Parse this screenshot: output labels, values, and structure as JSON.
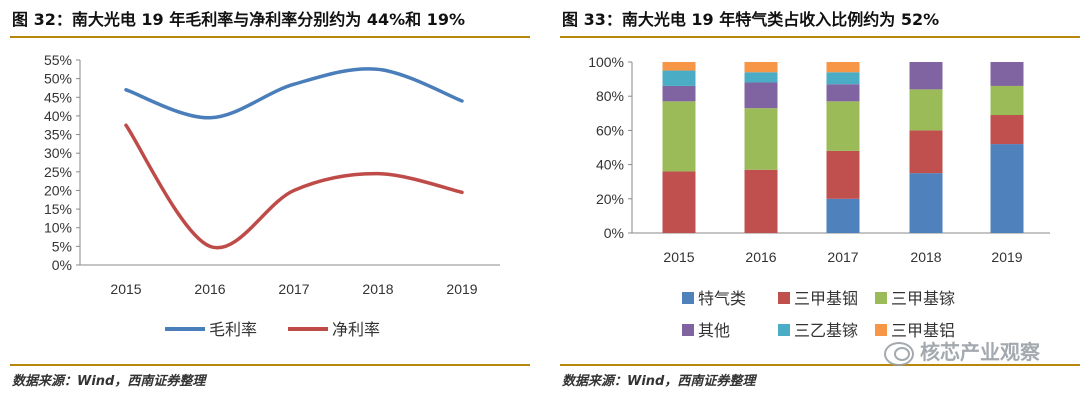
{
  "left": {
    "title": "图 32：南大光电 19 年毛利率与净利率分别约为 44%和 19%",
    "source": "数据来源：Wind，西南证券整理"
  },
  "right": {
    "title": "图 33：南大光电 19 年特气类占收入比例约为 52%",
    "source": "数据来源：Wind，西南证券整理"
  },
  "watermark": "核芯产业观察",
  "colors": {
    "rule": "#b8860b",
    "gross": "#4a7ebb",
    "net": "#be4b48",
    "teqi": "#4f81bd",
    "sanjiayin": "#c0504d",
    "sanjiajia": "#9bbb59",
    "qita": "#8064a2",
    "sanyijia": "#4bacc6",
    "sanjialv": "#f79646"
  },
  "chart_data": [
    {
      "type": "line",
      "x": [
        "2015",
        "2016",
        "2017",
        "2018",
        "2019"
      ],
      "series": [
        {
          "name": "毛利率",
          "values": [
            47,
            39.5,
            48.5,
            52.5,
            44
          ],
          "color": "#4a7ebb"
        },
        {
          "name": "净利率",
          "values": [
            37.5,
            5,
            20,
            24.5,
            19.5
          ],
          "color": "#be4b48"
        }
      ],
      "ylim": [
        0,
        55
      ],
      "yticks": [
        "0%",
        "5%",
        "10%",
        "15%",
        "20%",
        "25%",
        "30%",
        "35%",
        "40%",
        "45%",
        "50%",
        "55%"
      ],
      "ytick_values": [
        0,
        5,
        10,
        15,
        20,
        25,
        30,
        35,
        40,
        45,
        50,
        55
      ],
      "legend": "bottom",
      "grid": false
    },
    {
      "type": "bar",
      "stacked": true,
      "categories": [
        "2015",
        "2016",
        "2017",
        "2018",
        "2019"
      ],
      "series": [
        {
          "name": "特气类",
          "values": [
            0,
            0,
            20,
            35,
            52
          ],
          "color": "#4f81bd"
        },
        {
          "name": "三甲基铟",
          "values": [
            36,
            37,
            28,
            25,
            17
          ],
          "color": "#c0504d"
        },
        {
          "name": "三甲基镓",
          "values": [
            41,
            36,
            29,
            24,
            17
          ],
          "color": "#9bbb59"
        },
        {
          "name": "其他",
          "values": [
            9,
            15,
            10,
            16,
            14
          ],
          "color": "#8064a2"
        },
        {
          "name": "三乙基镓",
          "values": [
            9,
            6,
            7,
            0,
            0
          ],
          "color": "#4bacc6"
        },
        {
          "name": "三甲基铝",
          "values": [
            5,
            6,
            6,
            0,
            0
          ],
          "color": "#f79646"
        }
      ],
      "ylim": [
        0,
        100
      ],
      "yticks": [
        "0%",
        "20%",
        "40%",
        "60%",
        "80%",
        "100%"
      ],
      "ytick_values": [
        0,
        20,
        40,
        60,
        80,
        100
      ],
      "legend": "bottom",
      "grid": false
    }
  ]
}
